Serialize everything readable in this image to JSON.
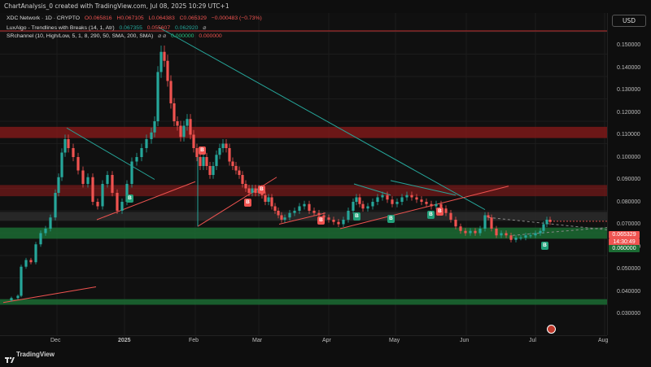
{
  "header": {
    "title": "ChartAnalysis_0 created with TradingView.com, Jul 08, 2025 10:29 UTC+1"
  },
  "currency_button": "USD",
  "legend": {
    "main": {
      "name": "XDC Network · 1D · CRYPTO",
      "o": "O0.065816",
      "h": "H0.067105",
      "l": "L0.064383",
      "c": "C0.065329",
      "chg": "−0.000483 (−0.73%)"
    },
    "lux": {
      "name": "LuxAlgo - Trendlines with Breaks (14, 1, Atr)",
      "v1": "0.067355",
      "v2": "0.055607",
      "v3": "0.062920",
      "icon": "⌀"
    },
    "sr": {
      "name": "SRchannel (10, High/Low, 5, 1, 8, 290, 50, SMA, 200, SMA)",
      "icons": "⌀ ⌀",
      "v1": "0.000000",
      "v2": "0.000000"
    }
  },
  "y_axis": [
    "0.150000",
    "0.140000",
    "0.130000",
    "0.120000",
    "0.110000",
    "0.100000",
    "0.090000",
    "0.080000",
    "0.070000",
    "0.060000",
    "0.050000",
    "0.040000",
    "0.030000"
  ],
  "x_axis": [
    "Dec",
    "2025",
    "Feb",
    "Mar",
    "Apr",
    "May",
    "Jun",
    "Jul",
    "Aug"
  ],
  "price_tags": {
    "last": "0.065329",
    "countdown": "14:30:49",
    "other": "0.060000"
  },
  "footer": {
    "brand": "TradingView"
  },
  "colors": {
    "up": "#26a69a",
    "down": "#ef5350",
    "resistance": "#8b1a1a",
    "support": "#1b6b33"
  },
  "markers": [
    {
      "type": "sell",
      "label": "B"
    },
    {
      "type": "buy",
      "label": "B"
    },
    {
      "type": "sell",
      "label": "B"
    },
    {
      "type": "sell",
      "label": "B"
    },
    {
      "type": "sell",
      "label": "B"
    },
    {
      "type": "buy",
      "label": "B"
    },
    {
      "type": "buy",
      "label": "B"
    },
    {
      "type": "sell",
      "label": "B"
    },
    {
      "type": "buy",
      "label": "B"
    },
    {
      "type": "buy",
      "label": "B"
    }
  ]
}
